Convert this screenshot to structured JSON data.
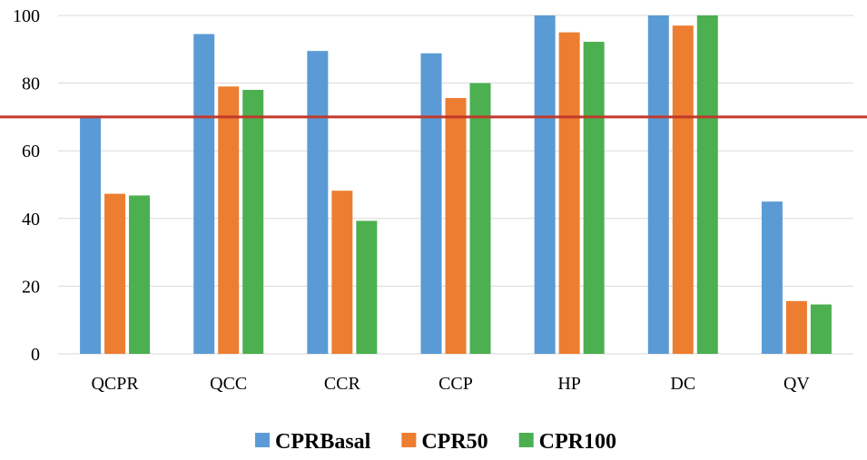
{
  "chart_data": {
    "type": "bar",
    "title": "",
    "xlabel": "",
    "ylabel": "",
    "categories": [
      "QCPR",
      "QCC",
      "CCR",
      "CCP",
      "HP",
      "DC",
      "QV"
    ],
    "series": [
      {
        "name": "CPRBasal",
        "color": "#5b9bd5",
        "values": [
          70,
          94.5,
          89.5,
          88.8,
          100,
          100,
          45
        ]
      },
      {
        "name": "CPR50",
        "color": "#ed7d31",
        "values": [
          47.3,
          79,
          48.2,
          75.6,
          95,
          97,
          15.6
        ]
      },
      {
        "name": "CPR100",
        "color": "#4caf50",
        "values": [
          46.8,
          78,
          39.3,
          80,
          92.2,
          100,
          14.6
        ]
      }
    ],
    "ylim": [
      0,
      100
    ],
    "yticks": [
      "0",
      "20",
      "40",
      "60",
      "80",
      "100"
    ],
    "grid": true,
    "legend_position": "bottom",
    "reference_line": {
      "value": 70,
      "color": "#c0392b"
    }
  }
}
